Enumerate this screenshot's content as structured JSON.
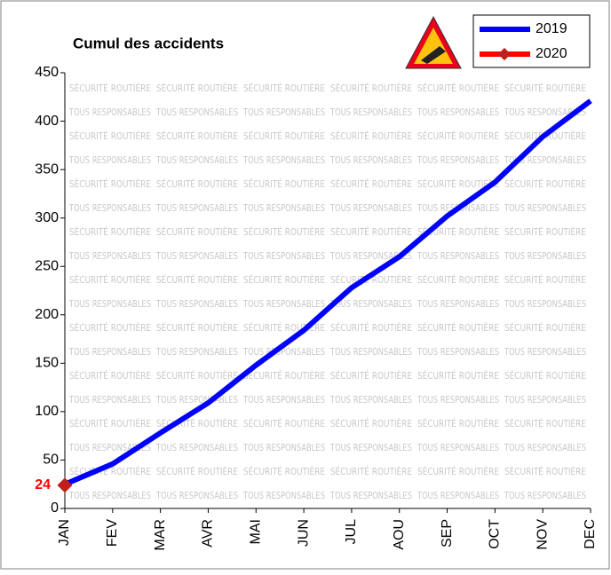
{
  "chart_data": {
    "type": "line",
    "title": "Cumul des accidents",
    "watermark": [
      "SÉCURITÉ ROUTIÈRE",
      "TOUS RESPONSABLES"
    ],
    "categories": [
      "JAN",
      "FEV",
      "MAR",
      "AVR",
      "MAI",
      "JUN",
      "JUL",
      "AOU",
      "SEP",
      "OCT",
      "NOV",
      "DEC"
    ],
    "series": [
      {
        "name": "2019",
        "color": "#0000ff",
        "values": [
          25,
          46,
          78,
          109,
          148,
          184,
          228,
          260,
          302,
          337,
          384,
          421
        ]
      },
      {
        "name": "2020",
        "color": "#ff0000",
        "values": [
          24,
          null,
          null,
          null,
          null,
          null,
          null,
          null,
          null,
          null,
          null,
          null
        ]
      }
    ],
    "ylim": [
      0,
      450
    ],
    "yticks": [
      0,
      50,
      100,
      150,
      200,
      250,
      300,
      350,
      400,
      450
    ]
  }
}
